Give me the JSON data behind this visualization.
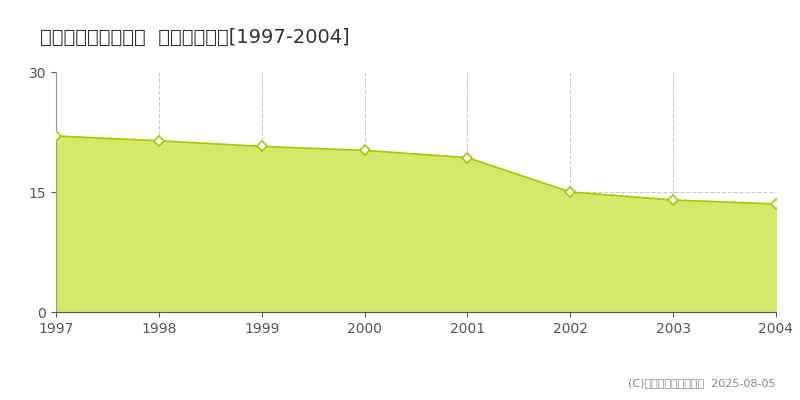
{
  "title": "長野市川中島町今里  基準地価推移[1997-2004]",
  "years": [
    1997,
    1998,
    1999,
    2000,
    2001,
    2002,
    2003,
    2004
  ],
  "values": [
    22.0,
    21.4,
    20.7,
    20.2,
    19.3,
    15.0,
    14.0,
    13.5
  ],
  "ylim": [
    0,
    30
  ],
  "yticks": [
    0,
    15,
    30
  ],
  "fill_color": "#d4e96a",
  "line_color": "#aac800",
  "marker_face_color": "#ffffff",
  "marker_edge_color": "#aac800",
  "bg_color": "#ffffff",
  "grid_color": "#cccccc",
  "copyright_text": "(C)土地価格ドットコム  2025-08-05",
  "legend_marker_color": "#c8e050",
  "title_fontsize": 14,
  "tick_fontsize": 10,
  "copyright_fontsize": 8,
  "legend_fontsize": 9
}
